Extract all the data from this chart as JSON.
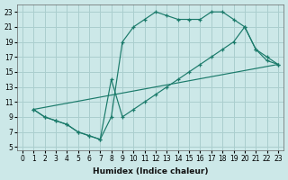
{
  "background_color": "#cce8e8",
  "grid_color": "#aacece",
  "line_color": "#1a7a6a",
  "xlabel": "Humidex (Indice chaleur)",
  "xlim": [
    -0.5,
    23.5
  ],
  "ylim": [
    4.5,
    24.0
  ],
  "xticks": [
    0,
    1,
    2,
    3,
    4,
    5,
    6,
    7,
    8,
    9,
    10,
    11,
    12,
    13,
    14,
    15,
    16,
    17,
    18,
    19,
    20,
    21,
    22,
    23
  ],
  "yticks": [
    5,
    7,
    9,
    11,
    13,
    15,
    17,
    19,
    21,
    23
  ],
  "line1_x": [
    1,
    2,
    3,
    4,
    5,
    6,
    7,
    8,
    9,
    10,
    11,
    12,
    13,
    14,
    15,
    16,
    17,
    18,
    19,
    20,
    21,
    22,
    23
  ],
  "line1_y": [
    10,
    9,
    8.5,
    8,
    7,
    6.5,
    6,
    9,
    19,
    21,
    22,
    23,
    22.5,
    22,
    22,
    22,
    23,
    23,
    22,
    21,
    18,
    16.5,
    16
  ],
  "line2_x": [
    1,
    23
  ],
  "line2_y": [
    10,
    16
  ],
  "line3_x": [
    1,
    2,
    3,
    4,
    5,
    6,
    7,
    8,
    9,
    10,
    11,
    12,
    13,
    14,
    15,
    16,
    17,
    18,
    19,
    20,
    21,
    22,
    23
  ],
  "line3_y": [
    10,
    9,
    8.5,
    8,
    7,
    6.5,
    6,
    14,
    9,
    10,
    11,
    12,
    13,
    14,
    15,
    16,
    17,
    18,
    19,
    21,
    18,
    17,
    16
  ]
}
